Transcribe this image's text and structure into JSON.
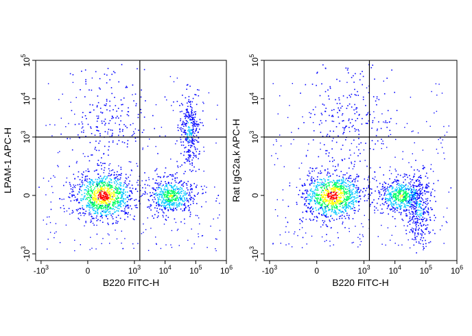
{
  "chart_data": [
    {
      "type": "scatter",
      "subtype": "flow-cytometry-density-dot-plot",
      "x_scale": "biexponential",
      "y_scale": "biexponential",
      "xlabel": "B220 FITC-H",
      "ylabel": "LPAM-1 APC-H",
      "x_ticks": [
        {
          "value": -1000,
          "label": "-10",
          "exp": "3"
        },
        {
          "value": 0,
          "label": "0",
          "exp": ""
        },
        {
          "value": 1000,
          "label": "10",
          "exp": "3"
        },
        {
          "value": 10000,
          "label": "10",
          "exp": "4"
        },
        {
          "value": 100000,
          "label": "10",
          "exp": "5"
        },
        {
          "value": 1000000,
          "label": "10",
          "exp": "6"
        }
      ],
      "y_ticks": [
        {
          "value": -1000,
          "label": "-10",
          "exp": "3"
        },
        {
          "value": 0,
          "label": "0",
          "exp": ""
        },
        {
          "value": 1000,
          "label": "10",
          "exp": "3"
        },
        {
          "value": 10000,
          "label": "10",
          "exp": "4"
        },
        {
          "value": 100000,
          "label": "10",
          "exp": "5"
        }
      ],
      "quadrant_gates": {
        "x": 1500,
        "y": 1000
      },
      "populations": [
        {
          "x_center": 150,
          "y_center": 0,
          "density": "very high"
        },
        {
          "x_center": 15000,
          "y_center": 0,
          "density": "high"
        },
        {
          "x_center": 60000,
          "y_center": 1500,
          "density": "medium",
          "shape": "vertical streak"
        },
        {
          "x_center": 200,
          "y_center": 2500,
          "density": "low",
          "shape": "sparse scatter"
        }
      ],
      "grid": false
    },
    {
      "type": "scatter",
      "subtype": "flow-cytometry-density-dot-plot",
      "x_scale": "biexponential",
      "y_scale": "biexponential",
      "xlabel": "B220 FITC-H",
      "ylabel": "Rat IgG2a,k APC-H",
      "x_ticks": [
        {
          "value": -1000,
          "label": "-10",
          "exp": "3"
        },
        {
          "value": 0,
          "label": "0",
          "exp": ""
        },
        {
          "value": 1000,
          "label": "10",
          "exp": "3"
        },
        {
          "value": 10000,
          "label": "10",
          "exp": "4"
        },
        {
          "value": 100000,
          "label": "10",
          "exp": "5"
        },
        {
          "value": 1000000,
          "label": "10",
          "exp": "6"
        }
      ],
      "y_ticks": [
        {
          "value": -1000,
          "label": "-10",
          "exp": "3"
        },
        {
          "value": 0,
          "label": "0",
          "exp": ""
        },
        {
          "value": 1000,
          "label": "10",
          "exp": "3"
        },
        {
          "value": 10000,
          "label": "10",
          "exp": "4"
        },
        {
          "value": 100000,
          "label": "10",
          "exp": "5"
        }
      ],
      "quadrant_gates": {
        "x": 1500,
        "y": 1000
      },
      "populations": [
        {
          "x_center": 150,
          "y_center": 0,
          "density": "very high"
        },
        {
          "x_center": 15000,
          "y_center": 0,
          "density": "high"
        },
        {
          "x_center": 60000,
          "y_center": -100,
          "density": "medium"
        },
        {
          "x_center": 300,
          "y_center": 3000,
          "density": "low",
          "shape": "sparse scatter"
        }
      ],
      "grid": false
    }
  ],
  "colors": {
    "density_low": "#0000ff",
    "density_mid": "#00c8ff",
    "density_midhigh": "#00ff60",
    "density_high": "#ffff00",
    "density_max": "#ff0000",
    "gate_line": "#000000",
    "axis": "#000000"
  }
}
